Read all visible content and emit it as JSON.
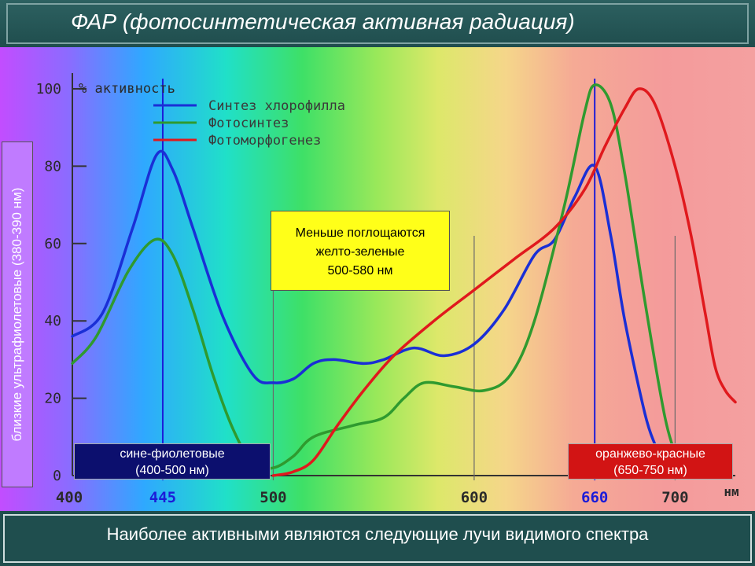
{
  "title": "ФАР (фотосинтетическая активная радиация)",
  "footer": "Наиболее активными являются следующие лучи видимого спектра",
  "side_label": "близкие ультрафиолетовые (380-390 нм)",
  "yellow_note": [
    "Меньше поглощаются",
    "желто-зеленые",
    "500-580 нм"
  ],
  "blue_note": [
    "сине-фиолетовые",
    "(400-500 нм)"
  ],
  "red_note": [
    "оранжево-красные",
    "(650-750 нм)"
  ],
  "colors": {
    "chlorophyll": "#1a2fd6",
    "photosynthesis": "#2f9a2f",
    "photomorphogenesis": "#e0191d",
    "highlight_tick": "#1c1cd8"
  },
  "chart_data": {
    "type": "line",
    "title": "",
    "ylabel": "% активность",
    "xlabel": "нм",
    "xlim": [
      400,
      730
    ],
    "ylim": [
      0,
      100
    ],
    "y_ticks": [
      "0",
      "20",
      "40",
      "60",
      "80",
      "100"
    ],
    "x_ticks": [
      {
        "value": 400,
        "label": "400",
        "highlight": false
      },
      {
        "value": 445,
        "label": "445",
        "highlight": true
      },
      {
        "value": 500,
        "label": "500",
        "highlight": false
      },
      {
        "value": 600,
        "label": "600",
        "highlight": false
      },
      {
        "value": 660,
        "label": "660",
        "highlight": true
      },
      {
        "value": 700,
        "label": "700",
        "highlight": false
      }
    ],
    "series": [
      {
        "name": "Синтез хлорофилла",
        "color": "#1a2fd6",
        "points": [
          [
            400,
            36
          ],
          [
            415,
            42
          ],
          [
            430,
            64
          ],
          [
            442,
            83
          ],
          [
            450,
            79
          ],
          [
            460,
            64
          ],
          [
            475,
            41
          ],
          [
            490,
            26
          ],
          [
            500,
            24
          ],
          [
            510,
            25
          ],
          [
            520,
            29
          ],
          [
            530,
            30
          ],
          [
            545,
            29
          ],
          [
            555,
            30
          ],
          [
            570,
            33
          ],
          [
            585,
            31
          ],
          [
            600,
            34
          ],
          [
            615,
            43
          ],
          [
            630,
            57
          ],
          [
            640,
            61
          ],
          [
            650,
            72
          ],
          [
            660,
            80
          ],
          [
            668,
            62
          ],
          [
            675,
            40
          ],
          [
            685,
            16
          ],
          [
            690,
            8
          ]
        ]
      },
      {
        "name": "Фотосинтез",
        "color": "#2f9a2f",
        "points": [
          [
            400,
            29
          ],
          [
            412,
            36
          ],
          [
            428,
            53
          ],
          [
            441,
            61
          ],
          [
            450,
            57
          ],
          [
            460,
            43
          ],
          [
            470,
            26
          ],
          [
            480,
            12
          ],
          [
            490,
            3
          ],
          [
            500,
            2
          ],
          [
            510,
            5
          ],
          [
            520,
            10
          ],
          [
            540,
            13
          ],
          [
            555,
            15
          ],
          [
            565,
            20
          ],
          [
            575,
            24
          ],
          [
            590,
            23
          ],
          [
            605,
            22
          ],
          [
            618,
            26
          ],
          [
            630,
            40
          ],
          [
            645,
            70
          ],
          [
            655,
            94
          ],
          [
            660,
            101
          ],
          [
            668,
            96
          ],
          [
            675,
            78
          ],
          [
            685,
            45
          ],
          [
            695,
            15
          ],
          [
            702,
            3
          ]
        ]
      },
      {
        "name": "Фотоморфогенез",
        "color": "#e0191d",
        "points": [
          [
            500,
            0
          ],
          [
            510,
            1
          ],
          [
            520,
            4
          ],
          [
            532,
            13
          ],
          [
            545,
            22
          ],
          [
            560,
            31
          ],
          [
            580,
            40
          ],
          [
            600,
            48
          ],
          [
            620,
            56
          ],
          [
            640,
            64
          ],
          [
            655,
            74
          ],
          [
            665,
            85
          ],
          [
            675,
            95
          ],
          [
            682,
            100
          ],
          [
            690,
            96
          ],
          [
            700,
            80
          ],
          [
            708,
            62
          ],
          [
            715,
            42
          ],
          [
            720,
            28
          ],
          [
            725,
            22
          ],
          [
            730,
            19
          ]
        ]
      }
    ]
  }
}
